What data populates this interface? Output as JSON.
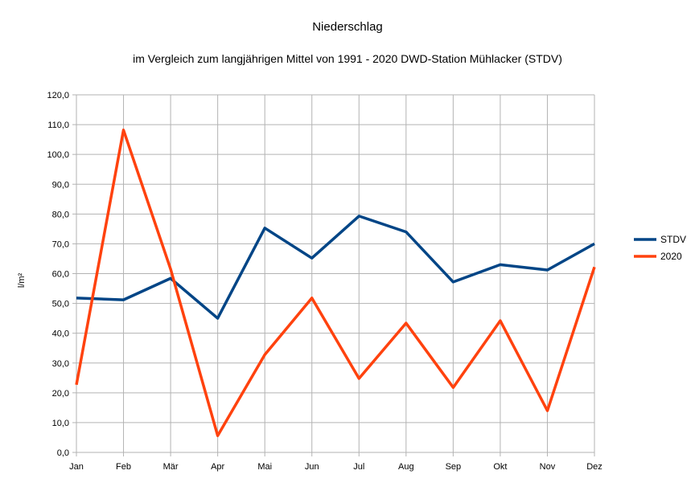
{
  "chart_data": {
    "type": "line",
    "title": "Niederschlag",
    "subtitle": "im Vergleich zum langjährigen Mittel von 1991 - 2020 DWD-Station Mühlacker (STDV)",
    "ylabel": "l/m²",
    "xlabel": "",
    "categories": [
      "Jan",
      "Feb",
      "Mär",
      "Apr",
      "Mai",
      "Jun",
      "Jul",
      "Aug",
      "Sep",
      "Okt",
      "Nov",
      "Dez"
    ],
    "ylim": [
      0,
      120
    ],
    "yticks": [
      "0,0",
      "10,0",
      "20,0",
      "30,0",
      "40,0",
      "50,0",
      "60,0",
      "70,0",
      "80,0",
      "90,0",
      "100,0",
      "110,0",
      "120,0"
    ],
    "grid": true,
    "legend_position": "right",
    "series": [
      {
        "name": "STDV",
        "color": "#004586",
        "values": [
          51.8,
          51.2,
          58.4,
          45.0,
          75.3,
          65.2,
          79.3,
          74.0,
          57.2,
          63.0,
          61.2,
          70.0
        ]
      },
      {
        "name": "2020",
        "color": "#ff420e",
        "values": [
          22.7,
          108.2,
          61.5,
          5.6,
          32.8,
          51.8,
          24.8,
          43.4,
          21.8,
          44.2,
          14.0,
          62.2
        ]
      }
    ]
  }
}
